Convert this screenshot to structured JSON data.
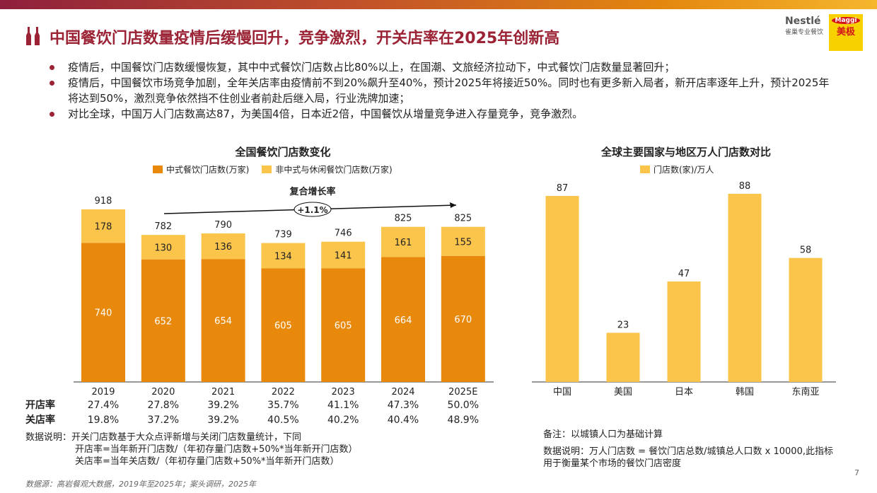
{
  "header": {
    "title": "中国餐饮门店数量疫情后缓慢回升，竞争激烈，开关店率在2025年创新高",
    "logo_nestle": "Nestlé",
    "logo_nestle_sub": "雀巢专业餐饮",
    "logo_maggi": "Maggi",
    "logo_maggi_cn": "美极"
  },
  "bullets": [
    "疫情后，中国餐饮门店数缓慢恢复，其中中式餐饮门店数占比80%以上，在国潮、文旅经济拉动下，中式餐饮门店数量显著回升；",
    "疫情后，中国餐饮市场竞争加剧，全年关店率由疫情前不到20%飙升至40%，预计2025年将接近50%。同时也有更多新入局者，新开店率逐年上升，预计2025年将达到50%，激烈竞争依然挡不住创业者前赴后继入局，行业洗牌加速；",
    "对比全球，中国万人门店数高达87，为美国4倍，日本近2倍，中国餐饮从增量竞争进入存量竞争，竞争激烈。"
  ],
  "colors": {
    "title": "#9b2335",
    "dark_bar": "#e8890c",
    "light_bar": "#fbc54b"
  },
  "chart_data": [
    {
      "type": "bar",
      "stacked": true,
      "title": "全国餐饮门店数变化",
      "categories": [
        "2019",
        "2020",
        "2021",
        "2022",
        "2023",
        "2024",
        "2025E"
      ],
      "series": [
        {
          "name": "中式餐饮门店数(万家)",
          "values": [
            740,
            652,
            654,
            605,
            605,
            664,
            670
          ]
        },
        {
          "name": "非中式与休闲餐饮门店数(万家)",
          "values": [
            178,
            130,
            136,
            134,
            141,
            161,
            155
          ]
        }
      ],
      "totals": [
        918,
        782,
        790,
        739,
        746,
        825,
        825
      ],
      "annotation": {
        "label": "复合增长率",
        "value": "+1.1%"
      },
      "legend": "top",
      "grid": false,
      "table": {
        "rows": [
          {
            "label": "开店率",
            "values": [
              "27.4%",
              "27.8%",
              "39.2%",
              "35.7%",
              "41.1%",
              "47.3%",
              "50.0%"
            ]
          },
          {
            "label": "关店率",
            "values": [
              "19.8%",
              "37.2%",
              "39.2%",
              "40.5%",
              "40.2%",
              "40.4%",
              "48.9%"
            ]
          }
        ]
      }
    },
    {
      "type": "bar",
      "title": "全球主要国家与地区万人门店数对比",
      "categories": [
        "中国",
        "美国",
        "日本",
        "韩国",
        "东南亚"
      ],
      "series": [
        {
          "name": "门店数(家)/万人",
          "values": [
            87,
            23,
            47,
            88,
            58
          ]
        }
      ],
      "legend": "top",
      "grid": false
    }
  ],
  "notes_left": [
    "数据说明：开关门店数基于大众点评新增与关闭门店数量统计，下同",
    "开店率=当年新开门店数/（年初存量门店数+50%*当年新开门店数）",
    "关店率=当年关店数/（年初存量门店数+50%*当年新开门店数）"
  ],
  "notes_right": [
    "备注：以城镇人口为基础计算",
    "数据说明：万人门店数 = 餐饮门店总数/城镇总人口数 x 10000,此指标用于衡量某个市场的餐饮门店密度"
  ],
  "source": "数据源：高岩餐观大数据，2019年至2025年；案头调研，2025年",
  "page_number": "7"
}
